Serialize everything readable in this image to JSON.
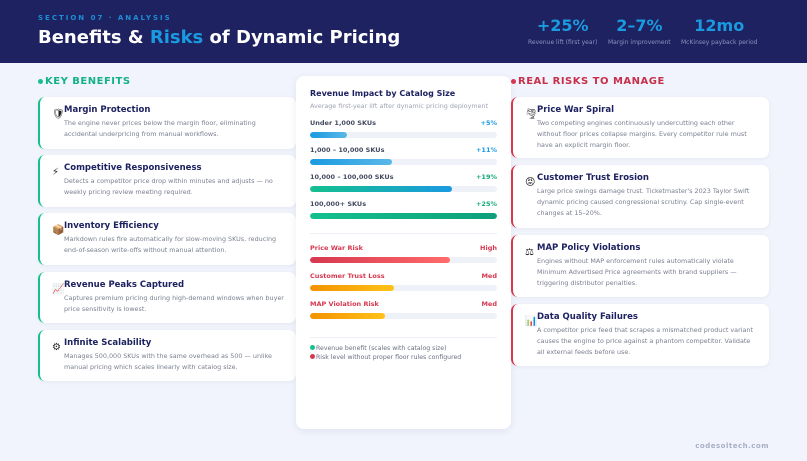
{
  "header": {
    "kicker": "SECTION 07 · ANALYSIS",
    "title_pre": "Benefits & ",
    "title_accent": "Risks",
    "title_post": " of Dynamic Pricing",
    "stats": [
      {
        "value": "+25%",
        "label": "Revenue lift (first year)"
      },
      {
        "value": "2–7%",
        "label": "Margin improvement"
      },
      {
        "value": "12mo",
        "label": "McKinsey payback period"
      }
    ]
  },
  "benefits": {
    "heading": "KEY BENEFITS",
    "items": [
      {
        "icon": "shield-icon",
        "title": "Margin Protection",
        "text": "The engine never prices below the margin floor, eliminating accidental underpricing from manual workflows."
      },
      {
        "icon": "lightning-icon",
        "title": "Competitive Responsiveness",
        "text": "Detects a competitor price drop within minutes and adjusts — no weekly pricing review meeting required."
      },
      {
        "icon": "package-icon",
        "title": "Inventory Efficiency",
        "text": "Markdown rules fire automatically for slow-moving SKUs, reducing end-of-season write-offs without manual attention."
      },
      {
        "icon": "chart-up-icon",
        "title": "Revenue Peaks Captured",
        "text": "Captures premium pricing during high-demand windows when buyer price sensitivity is lowest."
      },
      {
        "icon": "gear-icon",
        "title": "Infinite Scalability",
        "text": "Manages 500,000 SKUs with the same overhead as 500 — unlike manual pricing which scales linearly with catalog size."
      }
    ]
  },
  "impact": {
    "title": "Revenue Impact by Catalog Size",
    "subtitle": "Average first-year lift after dynamic pricing deployment",
    "rows": [
      {
        "label": "Under 1,000 SKUs",
        "value": "+5%",
        "pct": 5
      },
      {
        "label": "1,000 – 10,000 SKUs",
        "value": "+11%",
        "pct": 11
      },
      {
        "label": "10,000 – 100,000 SKUs",
        "value": "+19%",
        "pct": 19
      },
      {
        "label": "100,000+ SKUs",
        "value": "+25%",
        "pct": 25
      }
    ],
    "risks": [
      {
        "label": "Price War Risk",
        "level": "High",
        "fill": 0.75
      },
      {
        "label": "Customer Trust Loss",
        "level": "Med",
        "fill": 0.45
      },
      {
        "label": "MAP Violation Risk",
        "level": "Med",
        "fill": 0.4
      }
    ],
    "legend": [
      {
        "text": "Revenue benefit (scales with catalog size)",
        "color": "#14c08e"
      },
      {
        "text": "Risk level without proper floor rules configured",
        "color": "#d6374f"
      }
    ]
  },
  "risks": {
    "heading": "REAL RISKS TO MANAGE",
    "items": [
      {
        "icon": "tornado-icon",
        "title": "Price War Spiral",
        "text": "Two competing engines continuously undercutting each other without floor prices collapse margins. Every competitor rule must have an explicit margin floor."
      },
      {
        "icon": "angry-face-icon",
        "title": "Customer Trust Erosion",
        "text": "Large price swings damage trust. Ticketmaster's 2023 Taylor Swift dynamic pricing caused congressional scrutiny. Cap single-event changes at 15–20%."
      },
      {
        "icon": "scales-icon",
        "title": "MAP Policy Violations",
        "text": "Engines without MAP enforcement rules automatically violate Minimum Advertised Price agreements with brand suppliers — triggering distributor penalties."
      },
      {
        "icon": "bar-chart-icon",
        "title": "Data Quality Failures",
        "text": "A competitor price feed that scrapes a mismatched product variant causes the engine to price against a phantom competitor. Validate all external feeds before use."
      }
    ]
  },
  "footer": "codesoltech.com",
  "colors": {
    "navy": "#1e2260",
    "accent": "#1a9ae0",
    "benefit": "#14c08e",
    "risk": "#d6374f"
  }
}
